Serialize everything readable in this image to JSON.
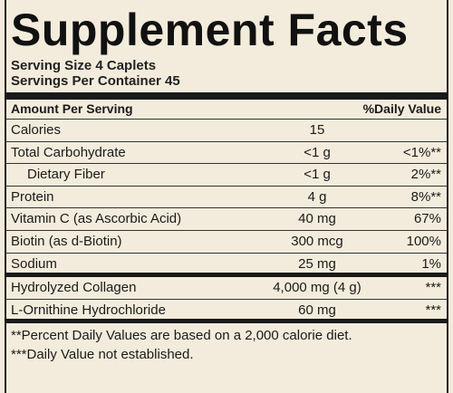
{
  "title": "Supplement Facts",
  "serving_size": "Serving Size 4 Caplets",
  "servings_per_container": "Servings Per Container 45",
  "header": {
    "amount": "Amount Per Serving",
    "daily_value": "%Daily Value"
  },
  "sections": [
    [
      {
        "name": "Calories",
        "amount": "15"
      },
      {
        "name": "Total Carbohydrate",
        "amount": "<1 g",
        "dv": "<1%**",
        "subrows": [
          {
            "name": "Dietary Fiber",
            "amount": "<1 g",
            "dv": "2%**"
          }
        ]
      },
      {
        "name": "Protein",
        "amount": "4 g",
        "dv": "8%**"
      },
      {
        "name": "Vitamin C (as Ascorbic Acid)",
        "amount": "40 mg",
        "dv": "67%"
      },
      {
        "name": "Biotin (as d-Biotin)",
        "amount": "300 mcg",
        "dv": "100%"
      },
      {
        "name": "Sodium",
        "amount": "25 mg",
        "dv": "1%"
      }
    ],
    [
      {
        "name": "Hydrolyzed Collagen",
        "amount": "4,000 mg (4 g)",
        "dv": "***"
      },
      {
        "name": "L-Ornithine Hydrochloride",
        "amount": "60 mg",
        "dv": "***"
      }
    ]
  ],
  "footnotes": [
    "**Percent Daily Values are based on a 2,000 calorie diet.",
    "***Daily Value not established."
  ]
}
